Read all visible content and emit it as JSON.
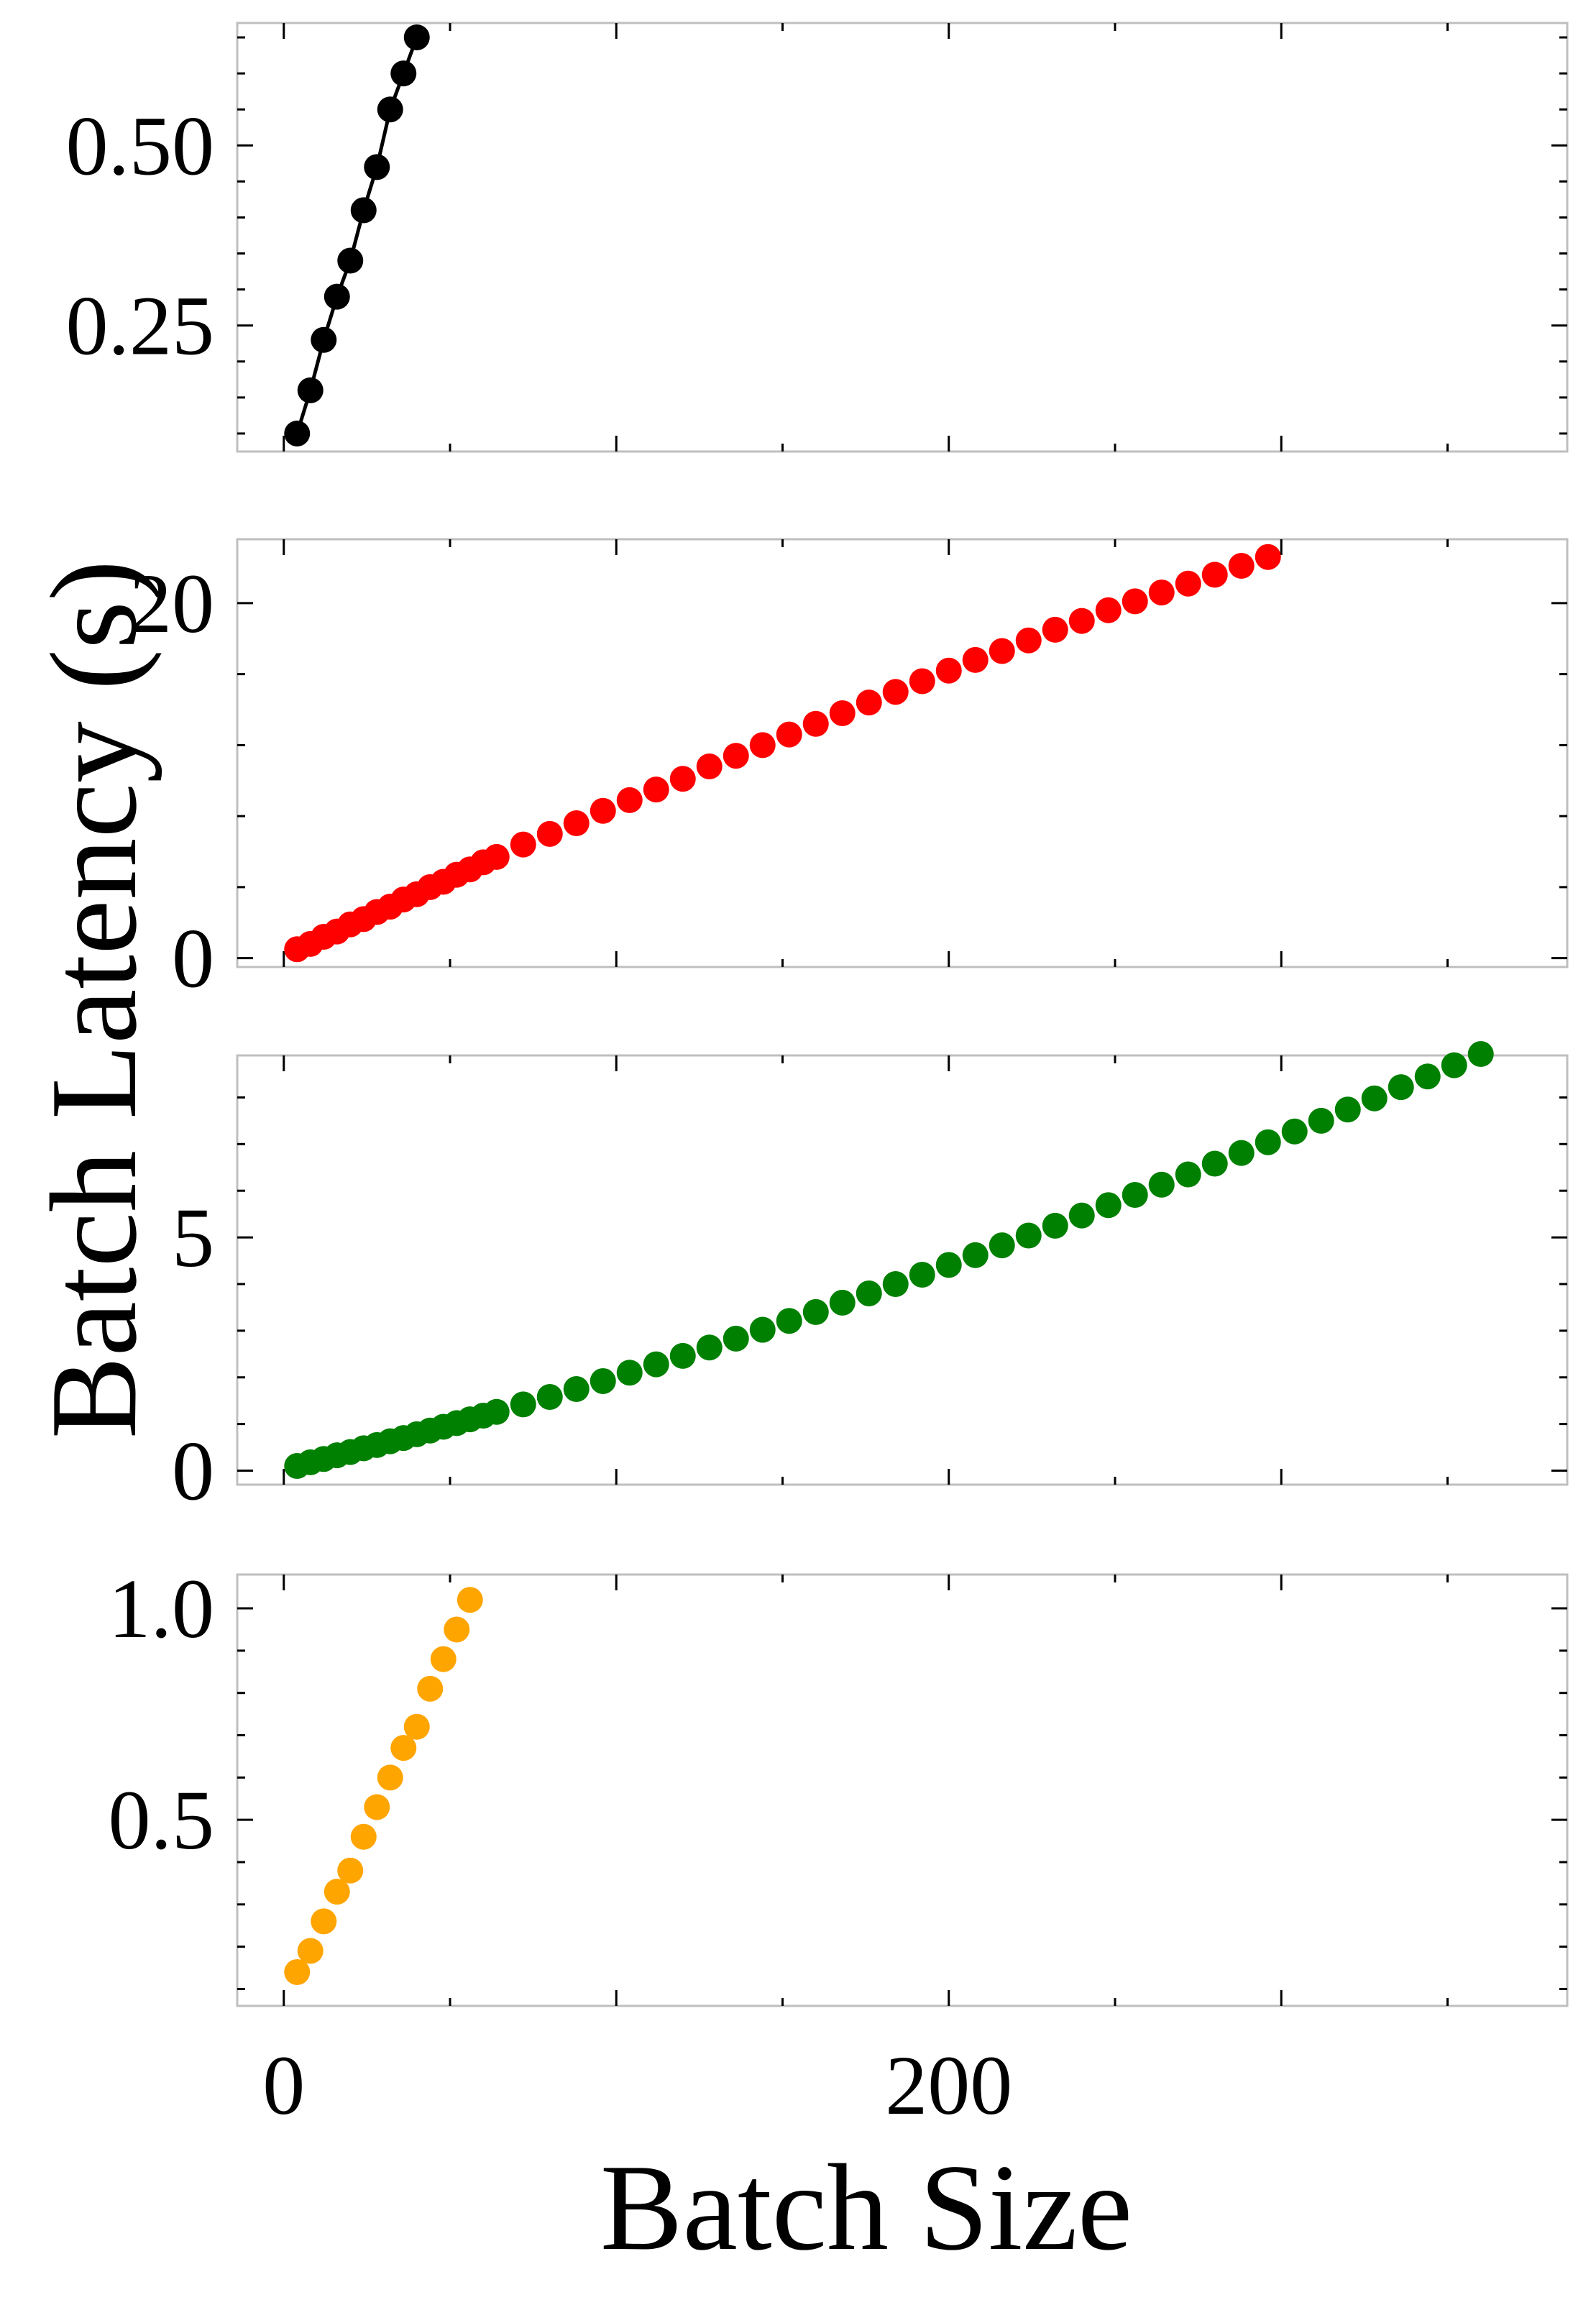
{
  "chart_data": {
    "type": "scatter",
    "xlabel": "Batch Size",
    "ylabel": "Batch Latency (s)",
    "xlim": [
      -14,
      386
    ],
    "x_ticks": [
      {
        "value": 0,
        "label": "0"
      },
      {
        "value": 200,
        "label": "200"
      }
    ],
    "grid": false,
    "legend": "none",
    "panels": [
      {
        "color": "#000000",
        "connected": true,
        "ylim": [
          0.075,
          0.67
        ],
        "y_ticks": [
          {
            "value": 0.25,
            "label": "0.25"
          },
          {
            "value": 0.5,
            "label": "0.50"
          }
        ],
        "x": [
          4,
          8,
          12,
          16,
          20,
          24,
          28,
          32,
          36,
          40
        ],
        "y": [
          0.1,
          0.16,
          0.23,
          0.29,
          0.34,
          0.41,
          0.47,
          0.55,
          0.6,
          0.65
        ]
      },
      {
        "color": "#ff0000",
        "connected": false,
        "ylim": [
          -0.5,
          23.6
        ],
        "y_ticks": [
          {
            "value": 0,
            "label": "0"
          },
          {
            "value": 20,
            "label": "20"
          }
        ],
        "x": [
          4,
          8,
          12,
          16,
          20,
          24,
          28,
          32,
          36,
          40,
          44,
          48,
          52,
          56,
          60,
          64,
          72,
          80,
          88,
          96,
          104,
          112,
          120,
          128,
          136,
          144,
          152,
          160,
          168,
          176,
          184,
          192,
          200,
          208,
          216,
          224,
          232,
          240,
          248,
          256,
          264,
          272,
          280,
          288,
          296
        ],
        "y": [
          0.5,
          0.8,
          1.2,
          1.5,
          1.9,
          2.2,
          2.6,
          2.9,
          3.3,
          3.6,
          4.0,
          4.3,
          4.7,
          5.0,
          5.4,
          5.7,
          6.4,
          7.0,
          7.6,
          8.3,
          8.9,
          9.5,
          10.1,
          10.8,
          11.4,
          12.0,
          12.6,
          13.2,
          13.8,
          14.4,
          15.0,
          15.6,
          16.2,
          16.8,
          17.3,
          17.9,
          18.5,
          19.0,
          19.6,
          20.1,
          20.6,
          21.1,
          21.6,
          22.1,
          22.6
        ]
      },
      {
        "color": "#008000",
        "connected": false,
        "ylim": [
          -0.3,
          8.9
        ],
        "y_ticks": [
          {
            "value": 0,
            "label": "0"
          },
          {
            "value": 5,
            "label": "5"
          }
        ],
        "x": [
          4,
          8,
          12,
          16,
          20,
          24,
          28,
          32,
          36,
          40,
          44,
          48,
          52,
          56,
          60,
          64,
          72,
          80,
          88,
          96,
          104,
          112,
          120,
          128,
          136,
          144,
          152,
          160,
          168,
          176,
          184,
          192,
          200,
          208,
          216,
          224,
          232,
          240,
          248,
          256,
          264,
          272,
          280,
          288,
          296,
          304,
          312,
          320,
          328,
          336,
          344,
          352,
          360
        ],
        "y": [
          0.1,
          0.18,
          0.25,
          0.33,
          0.4,
          0.48,
          0.55,
          0.63,
          0.7,
          0.78,
          0.86,
          0.94,
          1.02,
          1.1,
          1.18,
          1.26,
          1.42,
          1.58,
          1.75,
          1.92,
          2.1,
          2.28,
          2.46,
          2.64,
          2.83,
          3.02,
          3.21,
          3.4,
          3.6,
          3.8,
          4.0,
          4.2,
          4.41,
          4.62,
          4.83,
          5.04,
          5.25,
          5.47,
          5.69,
          5.91,
          6.13,
          6.35,
          6.58,
          6.81,
          7.04,
          7.27,
          7.5,
          7.74,
          7.98,
          8.22,
          8.45,
          8.69,
          8.93
        ]
      },
      {
        "color": "#ffa500",
        "connected": false,
        "ylim": [
          0.06,
          1.08
        ],
        "y_ticks": [
          {
            "value": 0.5,
            "label": "0.5"
          },
          {
            "value": 1.0,
            "label": "1.0"
          }
        ],
        "x": [
          4,
          8,
          12,
          16,
          20,
          24,
          28,
          32,
          36,
          40,
          44,
          48,
          52,
          56
        ],
        "y": [
          0.14,
          0.19,
          0.26,
          0.33,
          0.38,
          0.46,
          0.53,
          0.6,
          0.67,
          0.72,
          0.81,
          0.88,
          0.95,
          1.02
        ]
      }
    ]
  }
}
